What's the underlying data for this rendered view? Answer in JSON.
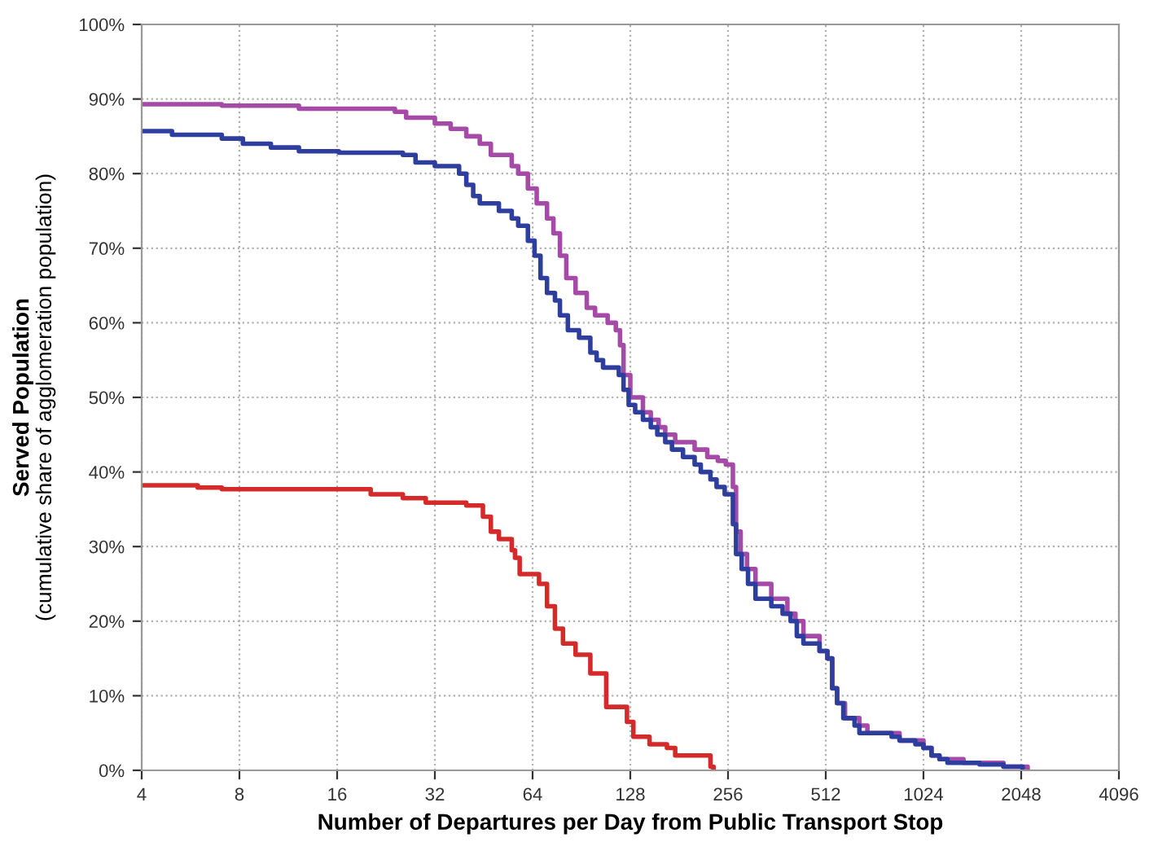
{
  "chart_data": {
    "type": "step",
    "xlabel": "Number of Departures per Day from Public Transport Stop",
    "ylabel": "Served Population\n(cumulative share of agglomeration population)",
    "log": "x",
    "xlim": [
      4,
      4096
    ],
    "xticks": [
      4,
      8,
      16,
      32,
      64,
      128,
      256,
      512,
      1024,
      2048,
      4096
    ],
    "ylim": [
      0,
      100
    ],
    "yticks": [
      {
        "value": 0,
        "label": "0%"
      },
      {
        "value": 10,
        "label": "10%"
      },
      {
        "value": 20,
        "label": "20%"
      },
      {
        "value": 30,
        "label": "30%"
      },
      {
        "value": 40,
        "label": "40%"
      },
      {
        "value": 50,
        "label": "50%"
      },
      {
        "value": 60,
        "label": "60%"
      },
      {
        "value": 70,
        "label": "70%"
      },
      {
        "value": 80,
        "label": "80%"
      },
      {
        "value": 90,
        "label": "90%"
      },
      {
        "value": 100,
        "label": "100%"
      }
    ],
    "grid": true,
    "line_style": "solid",
    "marker": "none",
    "series": [
      {
        "color": "#a64aa8",
        "x": [
          4,
          7.06,
          12.2,
          24.1,
          26.1,
          32,
          35.8,
          40,
          44,
          47.6,
          55.2,
          57.8,
          61.9,
          65.9,
          70.9,
          74.2,
          77.7,
          81.3,
          86.8,
          94,
          99.7,
          109,
          115.5,
          119,
          122,
          128,
          140,
          148,
          156.5,
          164,
          176,
          202,
          221,
          238,
          252,
          265,
          271,
          280,
          293,
          311,
          348,
          390,
          413,
          437,
          490,
          518,
          536,
          555,
          587,
          650,
          688,
          864,
          1024,
          1084,
          1147,
          1360,
          1806,
          2144
        ],
        "values": [
          89.3,
          89.1,
          88.7,
          88.3,
          87.5,
          86.7,
          86,
          85,
          84,
          82.5,
          81,
          80,
          78,
          76,
          74,
          72,
          69,
          66,
          64,
          62,
          61,
          60,
          59,
          57,
          53,
          50,
          48,
          47,
          46,
          45,
          44,
          43,
          42,
          41.5,
          41,
          38,
          32,
          29,
          27,
          25,
          23,
          21,
          20,
          18,
          16,
          15,
          11,
          9,
          7,
          6,
          5,
          4,
          3,
          2,
          1.5,
          1,
          0.5,
          0.2
        ]
      },
      {
        "color": "#2e3e9e",
        "x": [
          4,
          4.96,
          7.06,
          8.2,
          10,
          12.2,
          16.2,
          25.5,
          27.9,
          32,
          38,
          40,
          42,
          44,
          50.4,
          55.2,
          57.8,
          61.9,
          64.9,
          67.7,
          70.9,
          75,
          77.7,
          82.2,
          89,
          96.4,
          100.8,
          105.5,
          118,
          122,
          126.5,
          132.5,
          140,
          148,
          155,
          164,
          172,
          186,
          202,
          211,
          226,
          236,
          250,
          265,
          271,
          282,
          295,
          311,
          348,
          377,
          399,
          417,
          437,
          490,
          518,
          536,
          555,
          580,
          628,
          650,
          817,
          864,
          967,
          1024,
          1084,
          1147,
          1214,
          1524,
          1806,
          2070
        ],
        "values": [
          85.7,
          85.2,
          84.7,
          84,
          83.5,
          83,
          82.8,
          82.5,
          81.5,
          81,
          80,
          78.5,
          77,
          76,
          75,
          74,
          73,
          71,
          69,
          66,
          64,
          63,
          61,
          59,
          58,
          56,
          55,
          54,
          53,
          51,
          49,
          48,
          47,
          46,
          45,
          44,
          43,
          42,
          41,
          40,
          39,
          38,
          37,
          33,
          29,
          27,
          25,
          23,
          22,
          21,
          20,
          18,
          17,
          16,
          15,
          11,
          9,
          7,
          6,
          5,
          4.5,
          4,
          3.5,
          3,
          2,
          1.5,
          1,
          0.8,
          0.5,
          0.2
        ]
      },
      {
        "color": "#d52a2a",
        "x": [
          4,
          5.95,
          7.06,
          20.3,
          25.5,
          30,
          40,
          45,
          47.6,
          50.4,
          55.2,
          56.5,
          58.4,
          67,
          70.9,
          75,
          79.4,
          86.8,
          96.4,
          107.9,
          125,
          130.8,
          146.7,
          166,
          176,
          226,
          231
        ],
        "values": [
          38.2,
          37.9,
          37.7,
          37,
          36.5,
          35.9,
          35.5,
          34,
          32,
          31,
          29.5,
          28.5,
          26.3,
          25,
          22,
          19,
          17,
          15.5,
          13,
          8.5,
          6.5,
          4.5,
          3.5,
          3,
          2,
          0.5,
          0
        ]
      }
    ]
  }
}
